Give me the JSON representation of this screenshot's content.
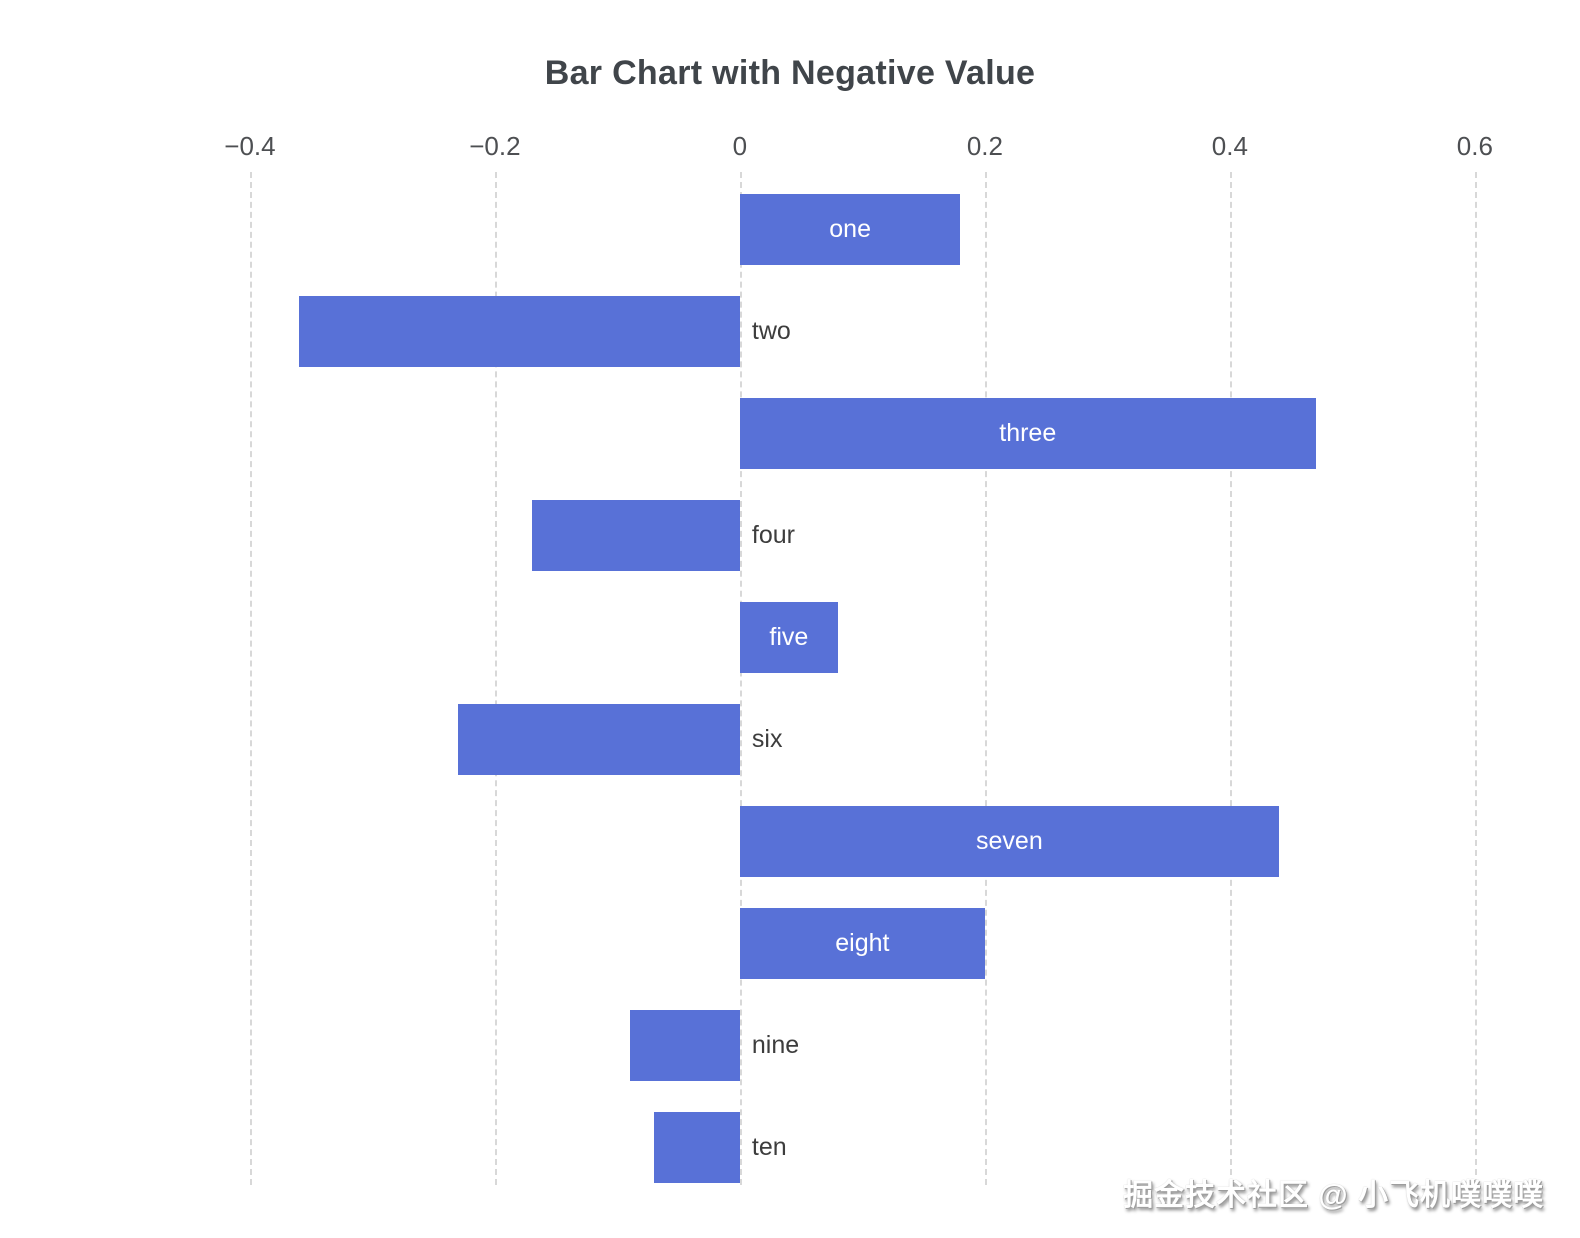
{
  "chart": {
    "title": "Bar Chart with Negative Value",
    "watermark": "掘金技术社区 @ 小飞机噗噗噗"
  },
  "chart_data": {
    "type": "bar",
    "orientation": "horizontal",
    "title": "Bar Chart with Negative Value",
    "categories": [
      "one",
      "two",
      "three",
      "four",
      "five",
      "six",
      "seven",
      "eight",
      "nine",
      "ten"
    ],
    "values": [
      0.18,
      -0.36,
      0.47,
      -0.17,
      0.08,
      -0.23,
      0.44,
      0.2,
      -0.09,
      -0.07
    ],
    "x_ticks": [
      -0.4,
      -0.2,
      0,
      0.2,
      0.4,
      0.6
    ],
    "x_tick_labels": [
      "−0.4",
      "−0.2",
      "0",
      "0.2",
      "0.4",
      "0.6"
    ],
    "xlim": [
      -0.453,
      0.645
    ],
    "ylabel": "",
    "xlabel": "",
    "legend": "none",
    "grid": "dashed-vertical-gridlines",
    "bar_color": "#5871d7",
    "label_inside_color": "#ffffff",
    "label_outside_color": "#3d3d3d",
    "label_placement": "positive values labeled inside bar, negative values labeled right of zero axis"
  }
}
